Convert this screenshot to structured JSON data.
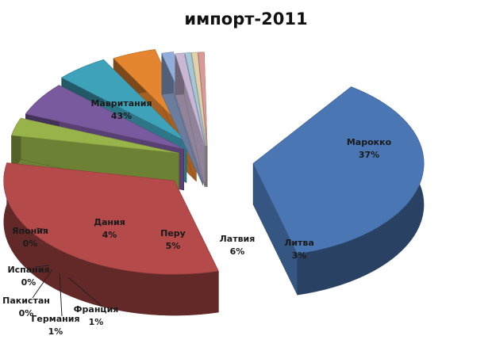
{
  "chart_data": {
    "type": "pie",
    "title": "импорт-2011",
    "slices": [
      {
        "name": "Мавритания",
        "value": 43,
        "label": "43%",
        "color": "#4a77b4"
      },
      {
        "name": "Марокко",
        "value": 37,
        "label": "37%",
        "color": "#b44a4a"
      },
      {
        "name": "Литва",
        "value": 3,
        "label": "3%",
        "color": "#98b34a"
      },
      {
        "name": "Латвия",
        "value": 6,
        "label": "6%",
        "color": "#7a5a9e"
      },
      {
        "name": "Перу",
        "value": 5,
        "label": "5%",
        "color": "#3fa2bb"
      },
      {
        "name": "Дания",
        "value": 4,
        "label": "4%",
        "color": "#e4852f"
      },
      {
        "name": "Франция",
        "value": 1,
        "label": "1%",
        "color": "#94aedb"
      },
      {
        "name": "Германия",
        "value": 1,
        "label": "1%",
        "color": "#c9b7d6"
      },
      {
        "name": "Пакистан",
        "value": 0,
        "label": "0%",
        "color": "#a4c8d8"
      },
      {
        "name": "Испания",
        "value": 0,
        "label": "0%",
        "color": "#e1d0a8"
      },
      {
        "name": "Япония",
        "value": 0,
        "label": "0%",
        "color": "#d99a98"
      }
    ]
  }
}
